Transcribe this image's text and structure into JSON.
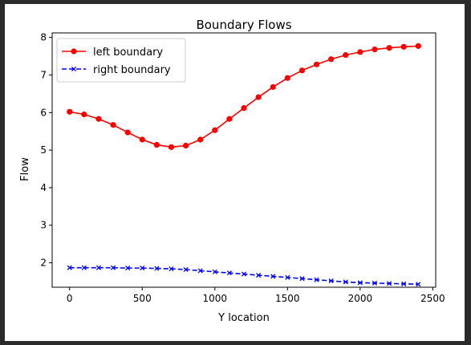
{
  "chart_data": {
    "type": "line",
    "title": "Boundary Flows",
    "xlabel": "Y location",
    "ylabel": "Flow",
    "xlim": [
      -120,
      2520
    ],
    "ylim": [
      1.35,
      8.12
    ],
    "xticks": [
      0,
      500,
      1000,
      1500,
      2000,
      2500
    ],
    "yticks": [
      2,
      3,
      4,
      5,
      6,
      7,
      8
    ],
    "grid": false,
    "legend_position": "top-left",
    "x": [
      0,
      100,
      200,
      300,
      400,
      500,
      600,
      700,
      800,
      900,
      1000,
      1100,
      1200,
      1300,
      1400,
      1500,
      1600,
      1700,
      1800,
      1900,
      2000,
      2100,
      2200,
      2300,
      2400
    ],
    "series": [
      {
        "name": "left boundary",
        "color": "#ff0000",
        "line_style": "solid",
        "marker": "circle",
        "values": [
          6.02,
          5.95,
          5.83,
          5.67,
          5.47,
          5.28,
          5.14,
          5.08,
          5.12,
          5.28,
          5.53,
          5.83,
          6.12,
          6.41,
          6.68,
          6.92,
          7.12,
          7.28,
          7.42,
          7.53,
          7.61,
          7.68,
          7.72,
          7.75,
          7.77
        ]
      },
      {
        "name": "right boundary",
        "color": "#0000ff",
        "line_style": "dashed",
        "marker": "x",
        "values": [
          1.87,
          1.87,
          1.87,
          1.87,
          1.86,
          1.86,
          1.85,
          1.84,
          1.82,
          1.79,
          1.76,
          1.73,
          1.7,
          1.67,
          1.64,
          1.61,
          1.58,
          1.55,
          1.52,
          1.49,
          1.47,
          1.46,
          1.45,
          1.44,
          1.43
        ]
      }
    ]
  }
}
